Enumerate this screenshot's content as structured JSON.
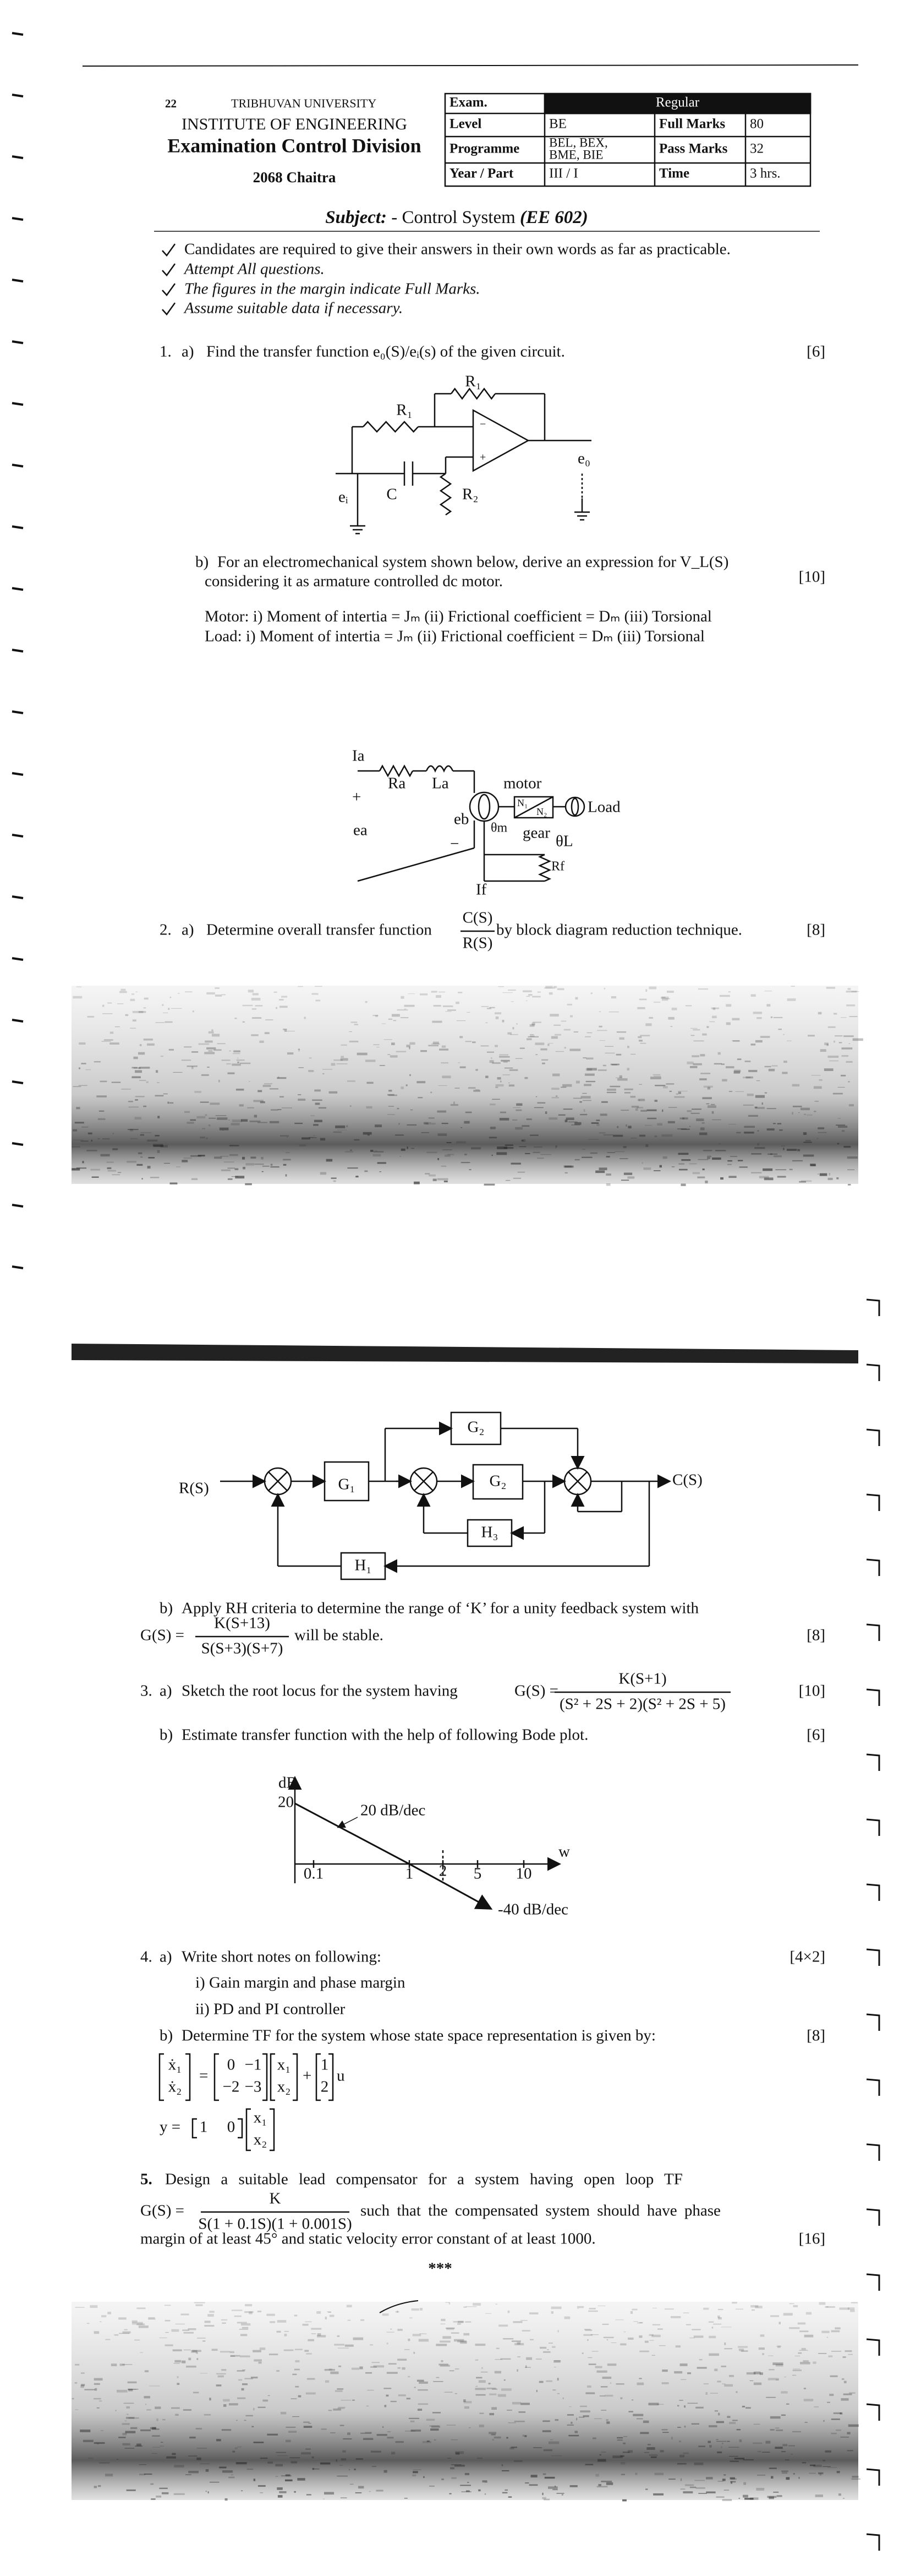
{
  "header": {
    "code": "22",
    "university": "TRIBHUVAN UNIVERSITY",
    "institute": "INSTITUTE OF ENGINEERING",
    "division": "Examination Control Division",
    "session": "2068 Chaitra"
  },
  "exam_table": {
    "rows": [
      [
        "Exam.",
        "Regular"
      ],
      [
        "Level",
        "BE",
        "Full Marks",
        "80"
      ],
      [
        "Programme",
        [
          "BEL, BEX,",
          "BME, BIE"
        ],
        "Pass Marks",
        "32"
      ],
      [
        "Year / Part",
        "III / I",
        "Time",
        "3 hrs."
      ]
    ]
  },
  "subject": {
    "label": "Subject:",
    "name": " - Control System ",
    "code": "(EE 602)"
  },
  "instructions": [
    "Candidates are required to give their answers in their own words as far as practicable.",
    "Attempt All questions.",
    "The figures in the margin indicate Full Marks.",
    "Assume suitable data if necessary."
  ],
  "questions": [
    {
      "number": "1.",
      "parts": [
        {
          "label": "a)",
          "text": "Find the transfer function e₀(S)/eᵢ(s) of the given circuit.",
          "marks": "[6]",
          "circuit": {
            "r1_top": "R₁",
            "r1": "R₁",
            "c": "C",
            "r2": "R₂",
            "e0": "e₀",
            "ei": "eᵢ",
            "plus": "+",
            "minus": "−"
          }
        },
        {
          "label": "b)",
          "lines": [
            "For an electromechanical system shown below, derive an expression for V_L(S)",
            "considering  it as armature controlled dc motor."
          ],
          "marks": "[10]",
          "notes": [
            "Motor: i) Moment of intertia = Jₘ (ii) Frictional coefficient = Dₘ (iii) Torsional",
            "Load: i) Moment of intertia = Jₘ (ii) Frictional coefficient = Dₘ (iii) Torsional"
          ],
          "motor": {
            "ia": "Ia",
            "ra": "Ra",
            "la": "La",
            "motor": "motor",
            "load": "Load",
            "plus": "+",
            "ea": "ea",
            "eb": "eb",
            "minus": "−",
            "theta_m": "θm",
            "gear": "gear",
            "theta_l": "θL",
            "if": "If",
            "rf": "Rf",
            "n1": "N₁",
            "n2": "N₂"
          }
        }
      ]
    },
    {
      "number": "2.",
      "parts": [
        {
          "label": "a)",
          "text": "Determine overall transfer function",
          "numerator": "C(S)",
          "denominator": "R(S)",
          "text_after": "by block diagram reduction technique.",
          "marks": "[8]",
          "block": {
            "input": "R(S)",
            "output": "C(S)",
            "g1": "G₁",
            "g2_top": "G₂",
            "g2": "G₂",
            "h3": "H₃",
            "h1": "H₁"
          }
        },
        {
          "label": "b)",
          "text": "Apply RH criteria to determine the range of ‘K’ for a unity feedback system with",
          "lhs": "G(S) =",
          "numerator": "K(S+13)",
          "denominator": "S(S+3)(S+7)",
          "text_after": "will be stable.",
          "marks": "[8]"
        }
      ]
    },
    {
      "number": "3.",
      "parts": [
        {
          "label": "a)",
          "text": "Sketch the root locus for the system having",
          "lhs": "G(S) =",
          "numerator": "K(S+1)",
          "denominator": "(S² + 2S + 2)(S² + 2S + 5)",
          "marks": "[10]"
        },
        {
          "label": "b)",
          "text": "Estimate transfer function with the help of following Bode plot.",
          "marks": "[6]",
          "bode": {
            "y_label": "dB",
            "y_value": "20",
            "slope1": "20 dB/dec",
            "slope2": "-40 dB/dec",
            "x_label": "w",
            "x_ticks": [
              "0.1",
              "1",
              "2",
              "5",
              "10"
            ]
          }
        }
      ]
    },
    {
      "number": "4.",
      "parts": [
        {
          "label": "a)",
          "text": "Write short notes on following:",
          "marks": "[4×2]",
          "items": [
            "i)   Gain margin and phase margin",
            "ii)  PD and PI controller"
          ]
        },
        {
          "label": "b)",
          "text": "Determine TF for the system whose state space representation is given by:",
          "marks": "[8]",
          "state": {
            "xdot": [
              "ẋ₁",
              "ẋ₂"
            ],
            "equals": "=",
            "a": [
              [
                "0",
                "−1"
              ],
              [
                "−2",
                "−3"
              ]
            ],
            "x": [
              "x₁",
              "x₂"
            ],
            "plus": "+",
            "b": [
              "1",
              "2"
            ],
            "u": "u",
            "y_lhs": "y =",
            "c": [
              "1",
              "0"
            ]
          }
        }
      ]
    },
    {
      "number": "5.",
      "parts": [
        {
          "text": "Design a suitable lead compensator for a system having open loop TF",
          "lhs": "G(S) =",
          "numerator": "K",
          "denominator": "S(1 + 0.1S)(1 + 0.001S)",
          "text_after": "such that the compensated system should have phase",
          "text_last": "margin of at least 45° and static velocity error constant of at least 1000.",
          "marks": "[16]"
        }
      ]
    }
  ],
  "end_mark": "***"
}
